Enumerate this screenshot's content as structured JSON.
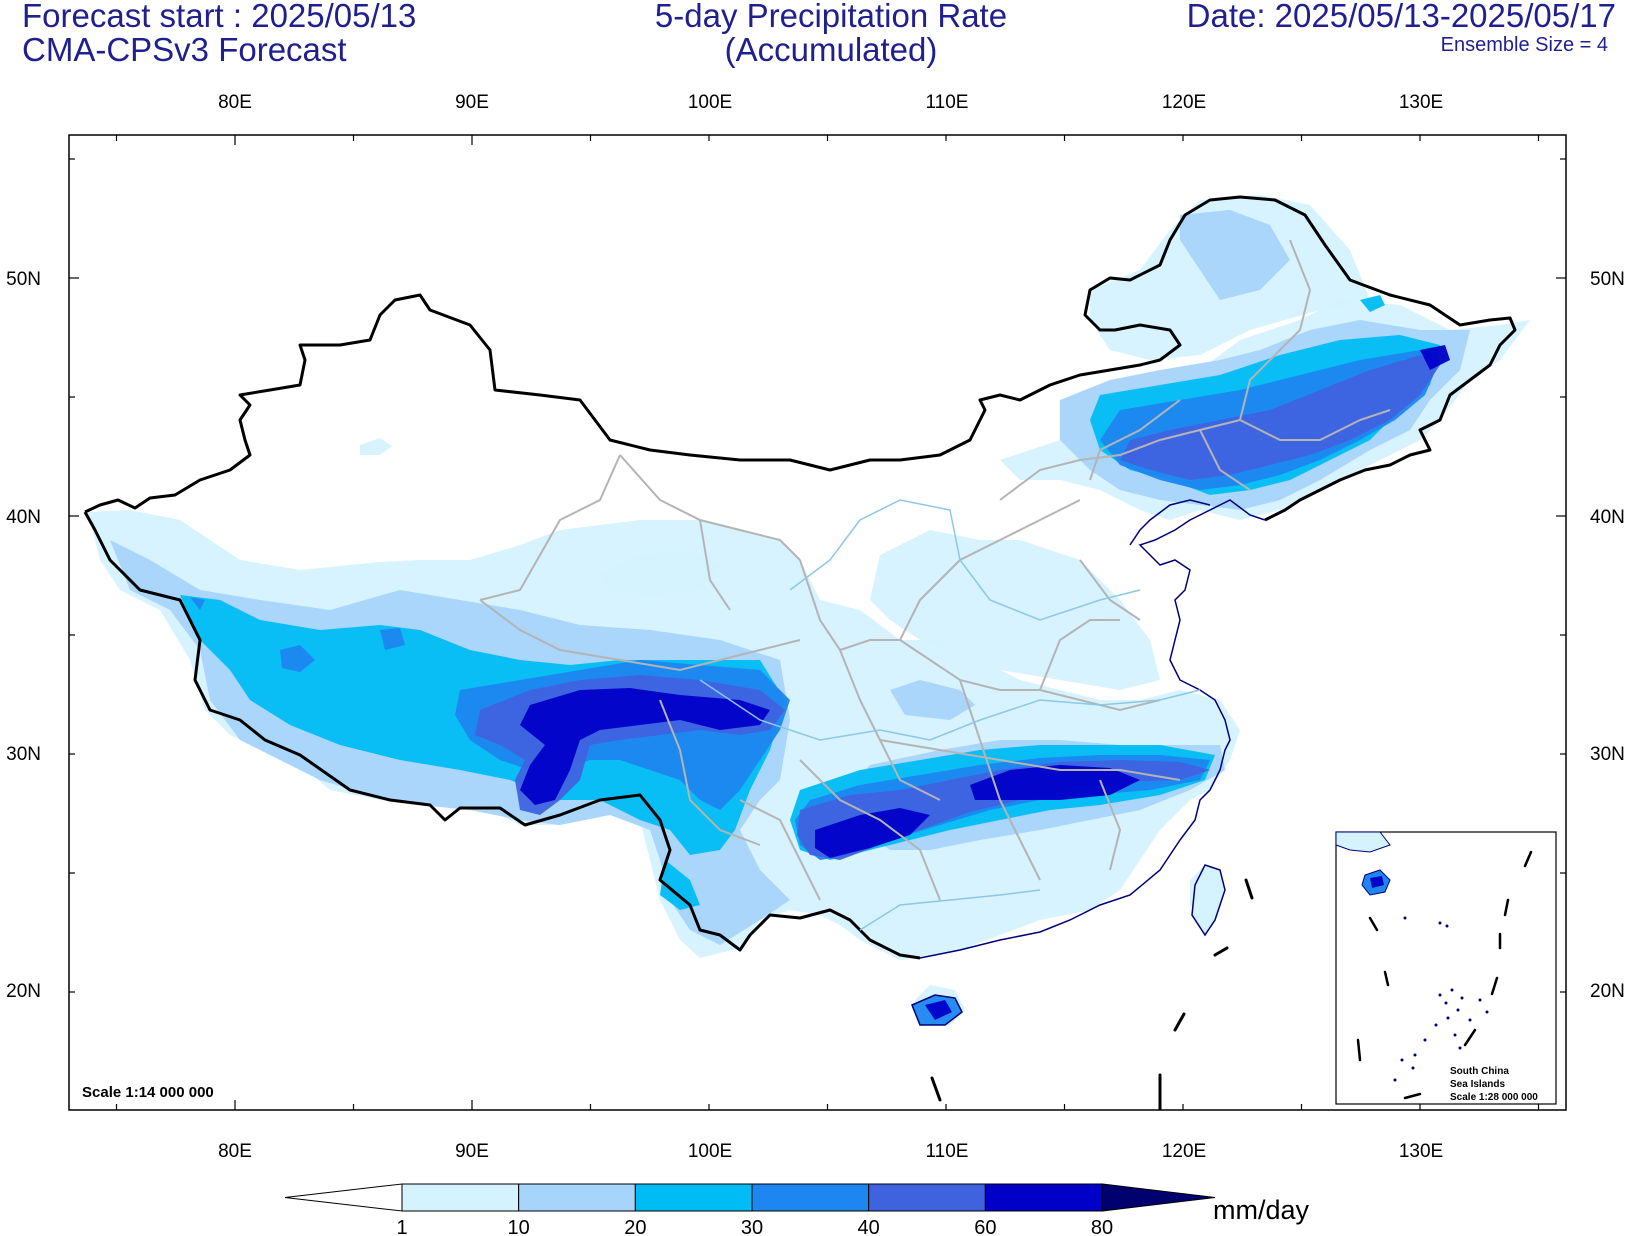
{
  "header": {
    "forecast_start": "Forecast start : 2025/05/13",
    "model": "CMA-CPSv3 Forecast",
    "title_line1": "5-day Precipitation Rate",
    "title_line2": "(Accumulated)",
    "date_range": "Date: 2025/05/13-2025/05/17",
    "ensemble": "Ensemble Size = 4"
  },
  "map": {
    "lon_ticks": [
      "80E",
      "90E",
      "100E",
      "110E",
      "120E",
      "130E"
    ],
    "lat_ticks": [
      "50N",
      "40N",
      "30N",
      "20N"
    ],
    "scale_main": "Scale 1:14 000 000",
    "inset": {
      "line1": "South China",
      "line2": "Sea Islands",
      "line3": "Scale 1:28 000 000"
    }
  },
  "colorbar": {
    "labels": [
      "1",
      "10",
      "20",
      "30",
      "40",
      "60",
      "80"
    ],
    "colors": [
      "#ffffff",
      "#d4f2ff",
      "#a6d4fa",
      "#00bcf4",
      "#1e86f0",
      "#3f63df",
      "#0000c8",
      "#00006e"
    ],
    "unit": "mm/day"
  }
}
